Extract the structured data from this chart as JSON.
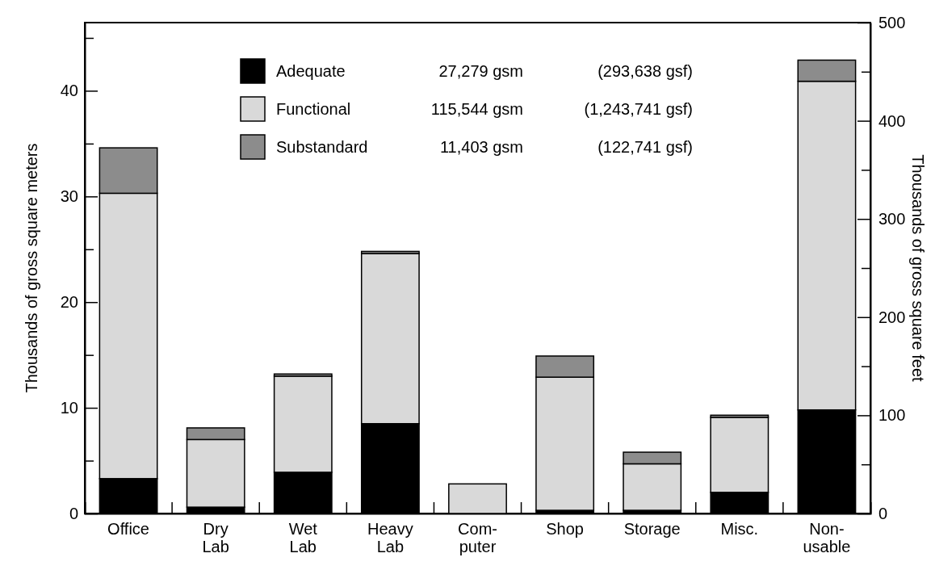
{
  "chart_data": {
    "type": "bar",
    "stacked": true,
    "categories": [
      "Office",
      "Dry\nLab",
      "Wet\nLab",
      "Heavy\nLab",
      "Com-\nputer",
      "Shop",
      "Storage",
      "Misc.",
      "Non-\nusable"
    ],
    "series": [
      {
        "name": "Adequate",
        "color": "#000000",
        "values": [
          3.3,
          0.6,
          3.9,
          8.5,
          0,
          0.3,
          0.3,
          2.0,
          9.8
        ]
      },
      {
        "name": "Functional",
        "color": "#d9d9d9",
        "values": [
          27.0,
          6.4,
          9.1,
          16.1,
          2.8,
          12.6,
          4.4,
          7.1,
          31.1
        ]
      },
      {
        "name": "Substandard",
        "color": "#8c8c8c",
        "values": [
          4.3,
          1.1,
          0.2,
          0.2,
          0,
          2.0,
          1.1,
          0.2,
          2.0
        ]
      }
    ],
    "ylabel": "Thousands of gross square meters",
    "y2label": "Thousands of gross square feet",
    "ylim": [
      0,
      46.45
    ],
    "yticks": [
      0,
      {
        "value": 5,
        "label": null
      },
      10,
      {
        "value": 15,
        "label": null
      },
      20,
      {
        "value": 25,
        "label": null
      },
      30,
      {
        "value": 35,
        "label": null
      },
      40,
      {
        "value": 45,
        "label": null
      }
    ],
    "y2lim": [
      0,
      500
    ],
    "y2ticks": [
      0,
      {
        "value": 50,
        "label": null
      },
      100,
      {
        "value": 150,
        "label": null
      },
      200,
      {
        "value": 250,
        "label": null
      },
      300,
      {
        "value": 350,
        "label": null
      },
      400,
      {
        "value": 450,
        "label": null
      },
      500
    ],
    "annotations": [
      "27,279 gsm",
      "(293,638 gsf)",
      "115,544 gsm",
      "(1,243,741 gsf)",
      "11,403 gsm",
      "(122,741 gsf)"
    ],
    "legend": "top",
    "grid": false
  }
}
